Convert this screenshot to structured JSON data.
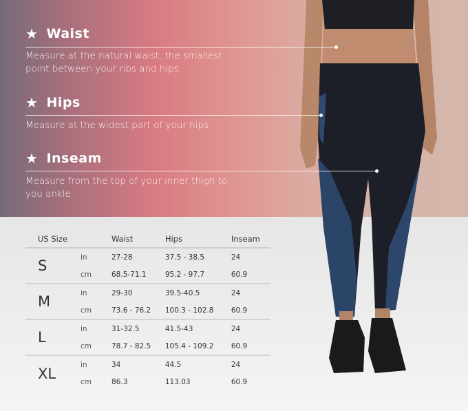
{
  "measures": [
    {
      "title": "Waist",
      "desc": "Measure at the natural waist, the smallest point between your ribs and hips."
    },
    {
      "title": "Hips",
      "desc": "Measure at the widest part of your hips."
    },
    {
      "title": "Inseam",
      "desc": "Measure from the top of your inner thigh to you ankle."
    }
  ],
  "icons": {
    "bullet": "star-icon"
  },
  "table": {
    "headers": [
      "US Size",
      "",
      "Waist",
      "Hips",
      "Inseam"
    ],
    "rows": [
      {
        "size": "S",
        "in": [
          "in",
          "27-28",
          "37.5 - 38.5",
          "24"
        ],
        "cm": [
          "cm",
          "68.5-71.1",
          "95.2 - 97.7",
          "60.9"
        ]
      },
      {
        "size": "M",
        "in": [
          "in",
          "29-30",
          "39.5-40.5",
          "24"
        ],
        "cm": [
          "cm",
          "73.6 - 76.2",
          "100.3 - 102.8",
          "60.9"
        ]
      },
      {
        "size": "L",
        "in": [
          "in",
          "31-32.5",
          "41.5-43",
          "24"
        ],
        "cm": [
          "cm",
          "78.7 - 82.5",
          "105.4 - 109.2",
          "60.9"
        ]
      },
      {
        "size": "XL",
        "in": [
          "in",
          "34",
          "44.5",
          "24"
        ],
        "cm": [
          "cm",
          "86.3",
          "113.03",
          "60.9"
        ]
      }
    ]
  }
}
